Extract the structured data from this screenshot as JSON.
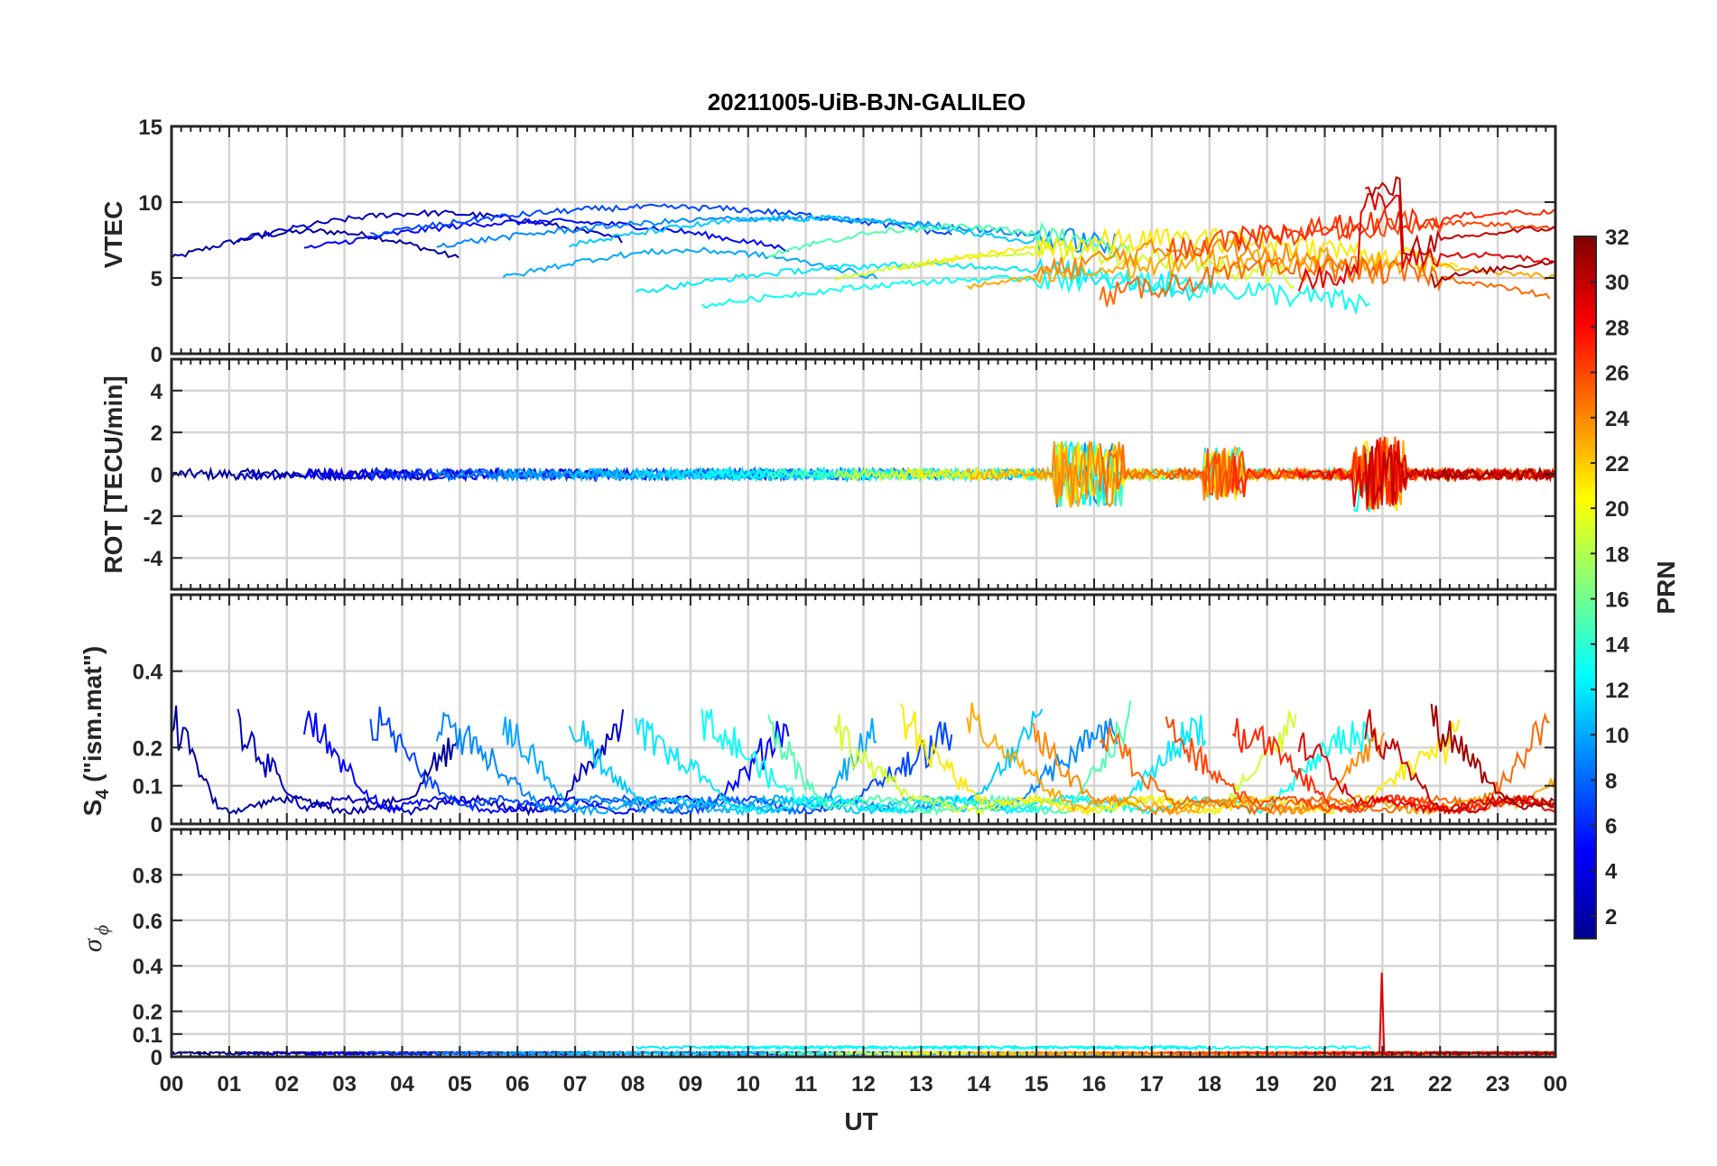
{
  "chart_data": [
    {
      "type": "line",
      "title": "20211005-UiB-BJN-GALILEO",
      "ylabel": "VTEC",
      "ylim": [
        0,
        15
      ],
      "yticks": [
        "0",
        "5",
        "10",
        "15"
      ],
      "ytick_values": [
        0,
        5,
        10,
        15
      ]
    },
    {
      "type": "line",
      "ylabel": "ROT [TECU/min]",
      "ylim": [
        -5.5,
        5.5
      ],
      "yticks": [
        "-4",
        "-2",
        "0",
        "2",
        "4"
      ],
      "ytick_values": [
        -4,
        -2,
        0,
        2,
        4
      ]
    },
    {
      "type": "line",
      "ylabel_main": "S",
      "ylabel_sub": "4",
      "ylabel_rest": " (\"ism.mat\")",
      "ylim": [
        0,
        0.6
      ],
      "yticks": [
        "0",
        "0.1",
        "0.2",
        "0.4"
      ],
      "ytick_values": [
        0,
        0.1,
        0.2,
        0.4
      ]
    },
    {
      "type": "line",
      "ylabel_main": "σ",
      "ylabel_sub": "ϕ",
      "ylim": [
        0,
        1.0
      ],
      "yticks": [
        "0",
        "0.1",
        "0.2",
        "0.4",
        "0.6",
        "0.8"
      ],
      "ytick_values": [
        0,
        0.1,
        0.2,
        0.4,
        0.6,
        0.8
      ],
      "xlabel": "UT",
      "xticks": [
        "00",
        "01",
        "02",
        "03",
        "04",
        "05",
        "06",
        "07",
        "08",
        "09",
        "10",
        "11",
        "12",
        "13",
        "14",
        "15",
        "16",
        "17",
        "18",
        "19",
        "20",
        "21",
        "22",
        "23",
        "00"
      ],
      "xlim": [
        0,
        24
      ]
    }
  ],
  "colorbar": {
    "label": "PRN",
    "range": [
      1,
      32
    ],
    "ticks": [
      "2",
      "4",
      "6",
      "8",
      "10",
      "12",
      "14",
      "16",
      "18",
      "20",
      "22",
      "24",
      "26",
      "28",
      "30",
      "32"
    ],
    "tick_values": [
      2,
      4,
      6,
      8,
      10,
      12,
      14,
      16,
      18,
      20,
      22,
      24,
      26,
      28,
      30,
      32
    ],
    "colormap": "jet"
  }
}
